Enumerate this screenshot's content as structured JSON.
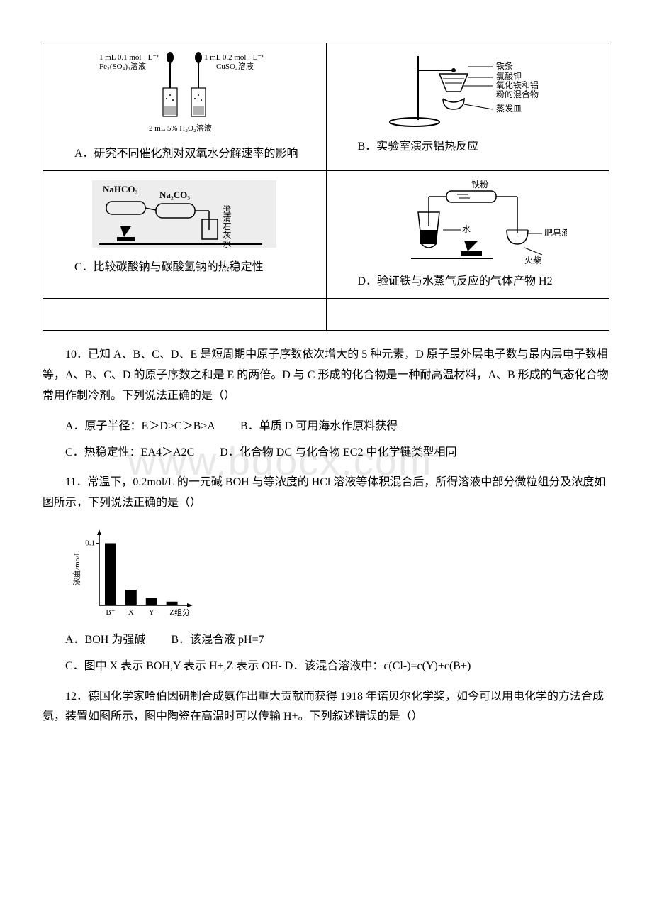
{
  "watermark": "www.bdocx.com",
  "table": {
    "cellA": {
      "img_labels": {
        "left_top": "1 mL 0.1 mol · L⁻¹",
        "left_sub": "Fe₂(SO₄)₃溶液",
        "right_top": "1 mL 0.2 mol · L⁻¹",
        "right_sub": "CuSO₄溶液",
        "bottom": "2 mL 5% H₂O₂溶液"
      },
      "caption": "A．研究不同催化剂对双氧水分解速率的影响"
    },
    "cellB": {
      "img_labels": {
        "l1": "铁条",
        "l2": "氯酸钾",
        "l3": "氧化铁和铝",
        "l4": "粉的混合物",
        "l5": "蒸发皿"
      },
      "caption": "B．实验室演示铝热反应"
    },
    "cellC": {
      "img_labels": {
        "left": "NaHCO₃",
        "right": "Na₂CO₃",
        "side": "澄清石灰水"
      },
      "caption": "C．比较碳酸钠与碳酸氢钠的热稳定性"
    },
    "cellD": {
      "img_labels": {
        "top": "铁粉",
        "mid": "水",
        "right": "肥皂液",
        "bottom": "火柴"
      },
      "caption": "D．验证铁与水蒸气反应的气体产物 H2"
    }
  },
  "q10": {
    "stem": "10．已知 A、B、C、D、E 是短周期中原子序数依次增大的 5 种元素，D 原子最外层电子数与最内层电子数相等，A、B、C、D 的原子序数之和是 E 的两倍。D 与 C 形成的化合物是一种耐高温材料，A、B 形成的气态化合物常用作制冷剂。下列说法正确的是（）",
    "optA": "A．原子半径：E＞D>C＞B>A",
    "optB": "B．单质 D 可用海水作原料获得",
    "optC": "C．热稳定性：EA4＞A2C",
    "optD": "D．化合物 DC 与化合物 EC2 中化学键类型相同"
  },
  "q11": {
    "stem": "11．常温下，0.2mol/L 的一元碱 BOH 与等浓度的 HCl 溶液等体积混合后，所得溶液中部分微粒组分及浓度如图所示，下列说法正确的是（）",
    "chart": {
      "type": "bar",
      "ylabel": "浓度/mo/L",
      "ymax_label": "0.1",
      "xlabel": "组分",
      "categories": [
        "B⁺",
        "X",
        "Y",
        "Z"
      ],
      "values": [
        0.1,
        0.025,
        0.012,
        0.006
      ],
      "bar_color": "#000000",
      "axis_color": "#000000",
      "ylim": [
        0,
        0.12
      ],
      "width": 180,
      "height": 140
    },
    "optA": "A．BOH 为强碱",
    "optB": "B．该混合液 pH=7",
    "optCD": "C．图中 X 表示 BOH,Y 表示 H+,Z 表示 OH-  D．该混合溶液中：c(Cl-)=c(Y)+c(B+)"
  },
  "q12": {
    "stem": "12．德国化学家哈伯因研制合成氨作出重大贡献而获得 1918 年诺贝尔化学奖，如今可以用电化学的方法合成氨，装置如图所示，图中陶瓷在高温时可以传输 H+。下列叙述错误的是（）"
  }
}
